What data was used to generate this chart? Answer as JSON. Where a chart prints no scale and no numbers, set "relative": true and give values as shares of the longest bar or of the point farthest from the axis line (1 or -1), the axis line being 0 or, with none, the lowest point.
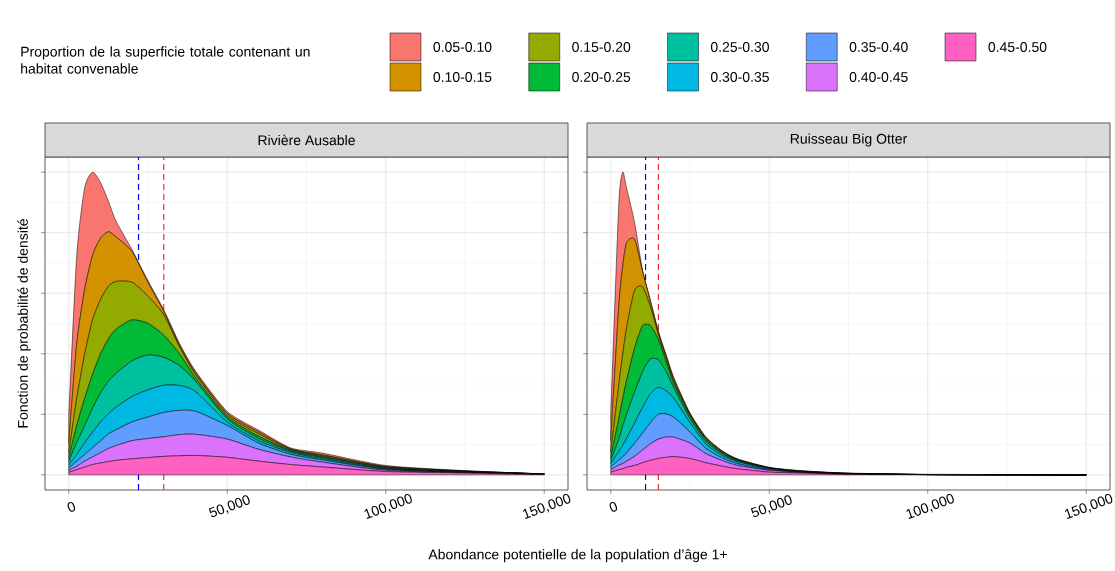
{
  "chart_data": [
    {
      "type": "area",
      "stacked": true,
      "relative": true,
      "title": "Rivière Ausable",
      "xlabel": "Abondance potentielle de la population d’âge 1+",
      "ylabel": "Fonction de probabilité de densité",
      "legend_title": "Proportion de la superficie totale contenant un habitat convenable",
      "legend": "top",
      "grid": true,
      "tick_labels": "x",
      "xlim": [
        -7500,
        157500
      ],
      "xticks": [
        0,
        {
          "value": 50000,
          "label": "50,000"
        },
        {
          "value": 100000,
          "label": "100,000"
        },
        {
          "value": 150000,
          "label": "150,000"
        }
      ],
      "x": [
        0,
        2500,
        5000,
        7500,
        10000,
        12500,
        15000,
        20000,
        25000,
        30000,
        35000,
        40000,
        50000,
        60000,
        70000,
        80000,
        100000,
        125000,
        150000
      ],
      "series": [
        {
          "name": "0.45-0.50",
          "color": "#ff61c3",
          "values": [
            0.008,
            0.017,
            0.026,
            0.034,
            0.039,
            0.044,
            0.048,
            0.053,
            0.057,
            0.061,
            0.063,
            0.064,
            0.058,
            0.045,
            0.034,
            0.026,
            0.011,
            0.006,
            0.001
          ]
        },
        {
          "name": "0.40-0.45",
          "color": "#db72fb",
          "values": [
            0.007,
            0.011,
            0.019,
            0.025,
            0.034,
            0.043,
            0.049,
            0.06,
            0.063,
            0.065,
            0.07,
            0.07,
            0.06,
            0.039,
            0.025,
            0.016,
            0.004,
            0.001,
            0.001
          ]
        },
        {
          "name": "0.35-0.40",
          "color": "#619cff",
          "values": [
            0.008,
            0.017,
            0.022,
            0.031,
            0.039,
            0.048,
            0.052,
            0.062,
            0.071,
            0.08,
            0.08,
            0.076,
            0.045,
            0.02,
            0.009,
            0.007,
            0.003,
            0.001,
            0.001
          ]
        },
        {
          "name": "0.30-0.35",
          "color": "#00b9e3",
          "values": [
            0.011,
            0.022,
            0.039,
            0.051,
            0.062,
            0.067,
            0.075,
            0.084,
            0.09,
            0.09,
            0.082,
            0.065,
            0.011,
            0.008,
            0.006,
            0.004,
            0.002,
            0.001,
            0
          ]
        },
        {
          "name": "0.25-0.30",
          "color": "#00c19f",
          "values": [
            0.011,
            0.039,
            0.056,
            0.079,
            0.096,
            0.107,
            0.112,
            0.118,
            0.115,
            0.092,
            0.065,
            0.034,
            0.011,
            0.008,
            0.004,
            0.004,
            0.002,
            0.001,
            0
          ]
        },
        {
          "name": "0.20-0.25",
          "color": "#00ba38",
          "values": [
            0.011,
            0.056,
            0.09,
            0.112,
            0.129,
            0.14,
            0.146,
            0.135,
            0.104,
            0.073,
            0.039,
            0.011,
            0.006,
            0.007,
            0.003,
            0.003,
            0.002,
            0.001,
            0
          ]
        },
        {
          "name": "0.15-0.20",
          "color": "#93aa00",
          "values": [
            0.017,
            0.09,
            0.146,
            0.18,
            0.18,
            0.174,
            0.157,
            0.124,
            0.09,
            0.067,
            0.022,
            0.011,
            0.006,
            0.008,
            0.003,
            0.003,
            0.002,
            0.001,
            0
          ]
        },
        {
          "name": "0.10-0.15",
          "color": "#d39200",
          "values": [
            0.034,
            0.18,
            0.213,
            0.213,
            0.202,
            0.18,
            0.146,
            0.101,
            0.045,
            0.011,
            0.006,
            0.006,
            0.006,
            0.006,
            0.002,
            0.003,
            0.002,
            0.001,
            0
          ]
        },
        {
          "name": "0.05-0.10",
          "color": "#f8766d",
          "values": [
            0.09,
            0.292,
            0.337,
            0.275,
            0.185,
            0.101,
            0.051,
            0.006,
            0.006,
            0.006,
            0.006,
            0.006,
            0.006,
            0.006,
            0.003,
            0.006,
            0.003,
            0.001,
            0
          ]
        }
      ],
      "ref_lines": [
        {
          "axis": "x",
          "value": 22000,
          "color": "#0000ff",
          "line_style": "dashed"
        },
        {
          "axis": "x",
          "value": 30000,
          "color": "#f03030",
          "line_style": "dashed"
        }
      ]
    },
    {
      "type": "area",
      "stacked": true,
      "relative": true,
      "title": "Ruisseau Big Otter",
      "grid": true,
      "tick_labels": "x",
      "xlim": [
        -7500,
        157500
      ],
      "xticks": [
        0,
        {
          "value": 50000,
          "label": "50,000"
        },
        {
          "value": 100000,
          "label": "100,000"
        },
        {
          "value": 150000,
          "label": "150,000"
        }
      ],
      "x": [
        0,
        2500,
        3750,
        5000,
        7500,
        10000,
        12500,
        15000,
        17500,
        20000,
        25000,
        30000,
        35000,
        40000,
        50000,
        60000,
        75000,
        100000,
        150000
      ],
      "series": [
        {
          "color": "#ff61c3",
          "values": [
            0.009,
            0.017,
            0.02,
            0.025,
            0.031,
            0.04,
            0.048,
            0.054,
            0.058,
            0.06,
            0.054,
            0.04,
            0.029,
            0.02,
            0.009,
            0.006,
            0.002,
            0.001,
            0
          ]
        },
        {
          "color": "#db72fb",
          "values": [
            0.008,
            0.015,
            0.017,
            0.02,
            0.03,
            0.042,
            0.054,
            0.064,
            0.067,
            0.064,
            0.051,
            0.03,
            0.019,
            0.011,
            0.006,
            0.002,
            0,
            0,
            0
          ]
        },
        {
          "color": "#619cff",
          "values": [
            0.009,
            0.017,
            0.022,
            0.028,
            0.043,
            0.056,
            0.07,
            0.082,
            0.076,
            0.065,
            0.036,
            0.017,
            0.009,
            0.006,
            0.002,
            0.001,
            0.001,
            0,
            0
          ]
        },
        {
          "color": "#00b9e3",
          "values": [
            0.011,
            0.028,
            0.039,
            0.048,
            0.067,
            0.084,
            0.096,
            0.089,
            0.076,
            0.062,
            0.031,
            0.015,
            0.008,
            0.006,
            0.003,
            0.001,
            0,
            0,
            0
          ]
        },
        {
          "color": "#00c19f",
          "values": [
            0.011,
            0.039,
            0.062,
            0.079,
            0.101,
            0.118,
            0.115,
            0.091,
            0.062,
            0.034,
            0.013,
            0.008,
            0.006,
            0.003,
            0.001,
            0,
            0.001,
            0,
            0
          ]
        },
        {
          "color": "#00ba38",
          "values": [
            0.011,
            0.067,
            0.09,
            0.112,
            0.146,
            0.152,
            0.11,
            0.067,
            0.034,
            0.013,
            0.009,
            0.006,
            0.003,
            0.002,
            0.001,
            0.001,
            0,
            0,
            0
          ]
        },
        {
          "color": "#93aa00",
          "values": [
            0.017,
            0.112,
            0.146,
            0.174,
            0.191,
            0.129,
            0.062,
            0.017,
            0.011,
            0.009,
            0.004,
            0.004,
            0.003,
            0.002,
            0.001,
            0.001,
            0.001,
            0,
            0
          ]
        },
        {
          "color": "#d39200",
          "values": [
            0.039,
            0.258,
            0.292,
            0.281,
            0.169,
            0.051,
            0.017,
            0.006,
            0.006,
            0.006,
            0.003,
            0.003,
            0.002,
            0.001,
            0.001,
            0.001,
            0,
            0,
            0
          ]
        },
        {
          "color": "#f8766d",
          "values": [
            0.09,
            0.337,
            0.312,
            0.18,
            0.056,
            0.006,
            0.006,
            0.006,
            0.006,
            0.006,
            0.003,
            0.003,
            0.002,
            0.002,
            0.001,
            0.001,
            0.001,
            0.001,
            0
          ]
        }
      ],
      "ref_lines": [
        {
          "axis": "x",
          "value": 11000,
          "color": "#0000ff",
          "line_style": "dashed"
        },
        {
          "axis": "x",
          "value": 15000,
          "color": "#f03030",
          "line_style": "dashed"
        }
      ]
    }
  ]
}
